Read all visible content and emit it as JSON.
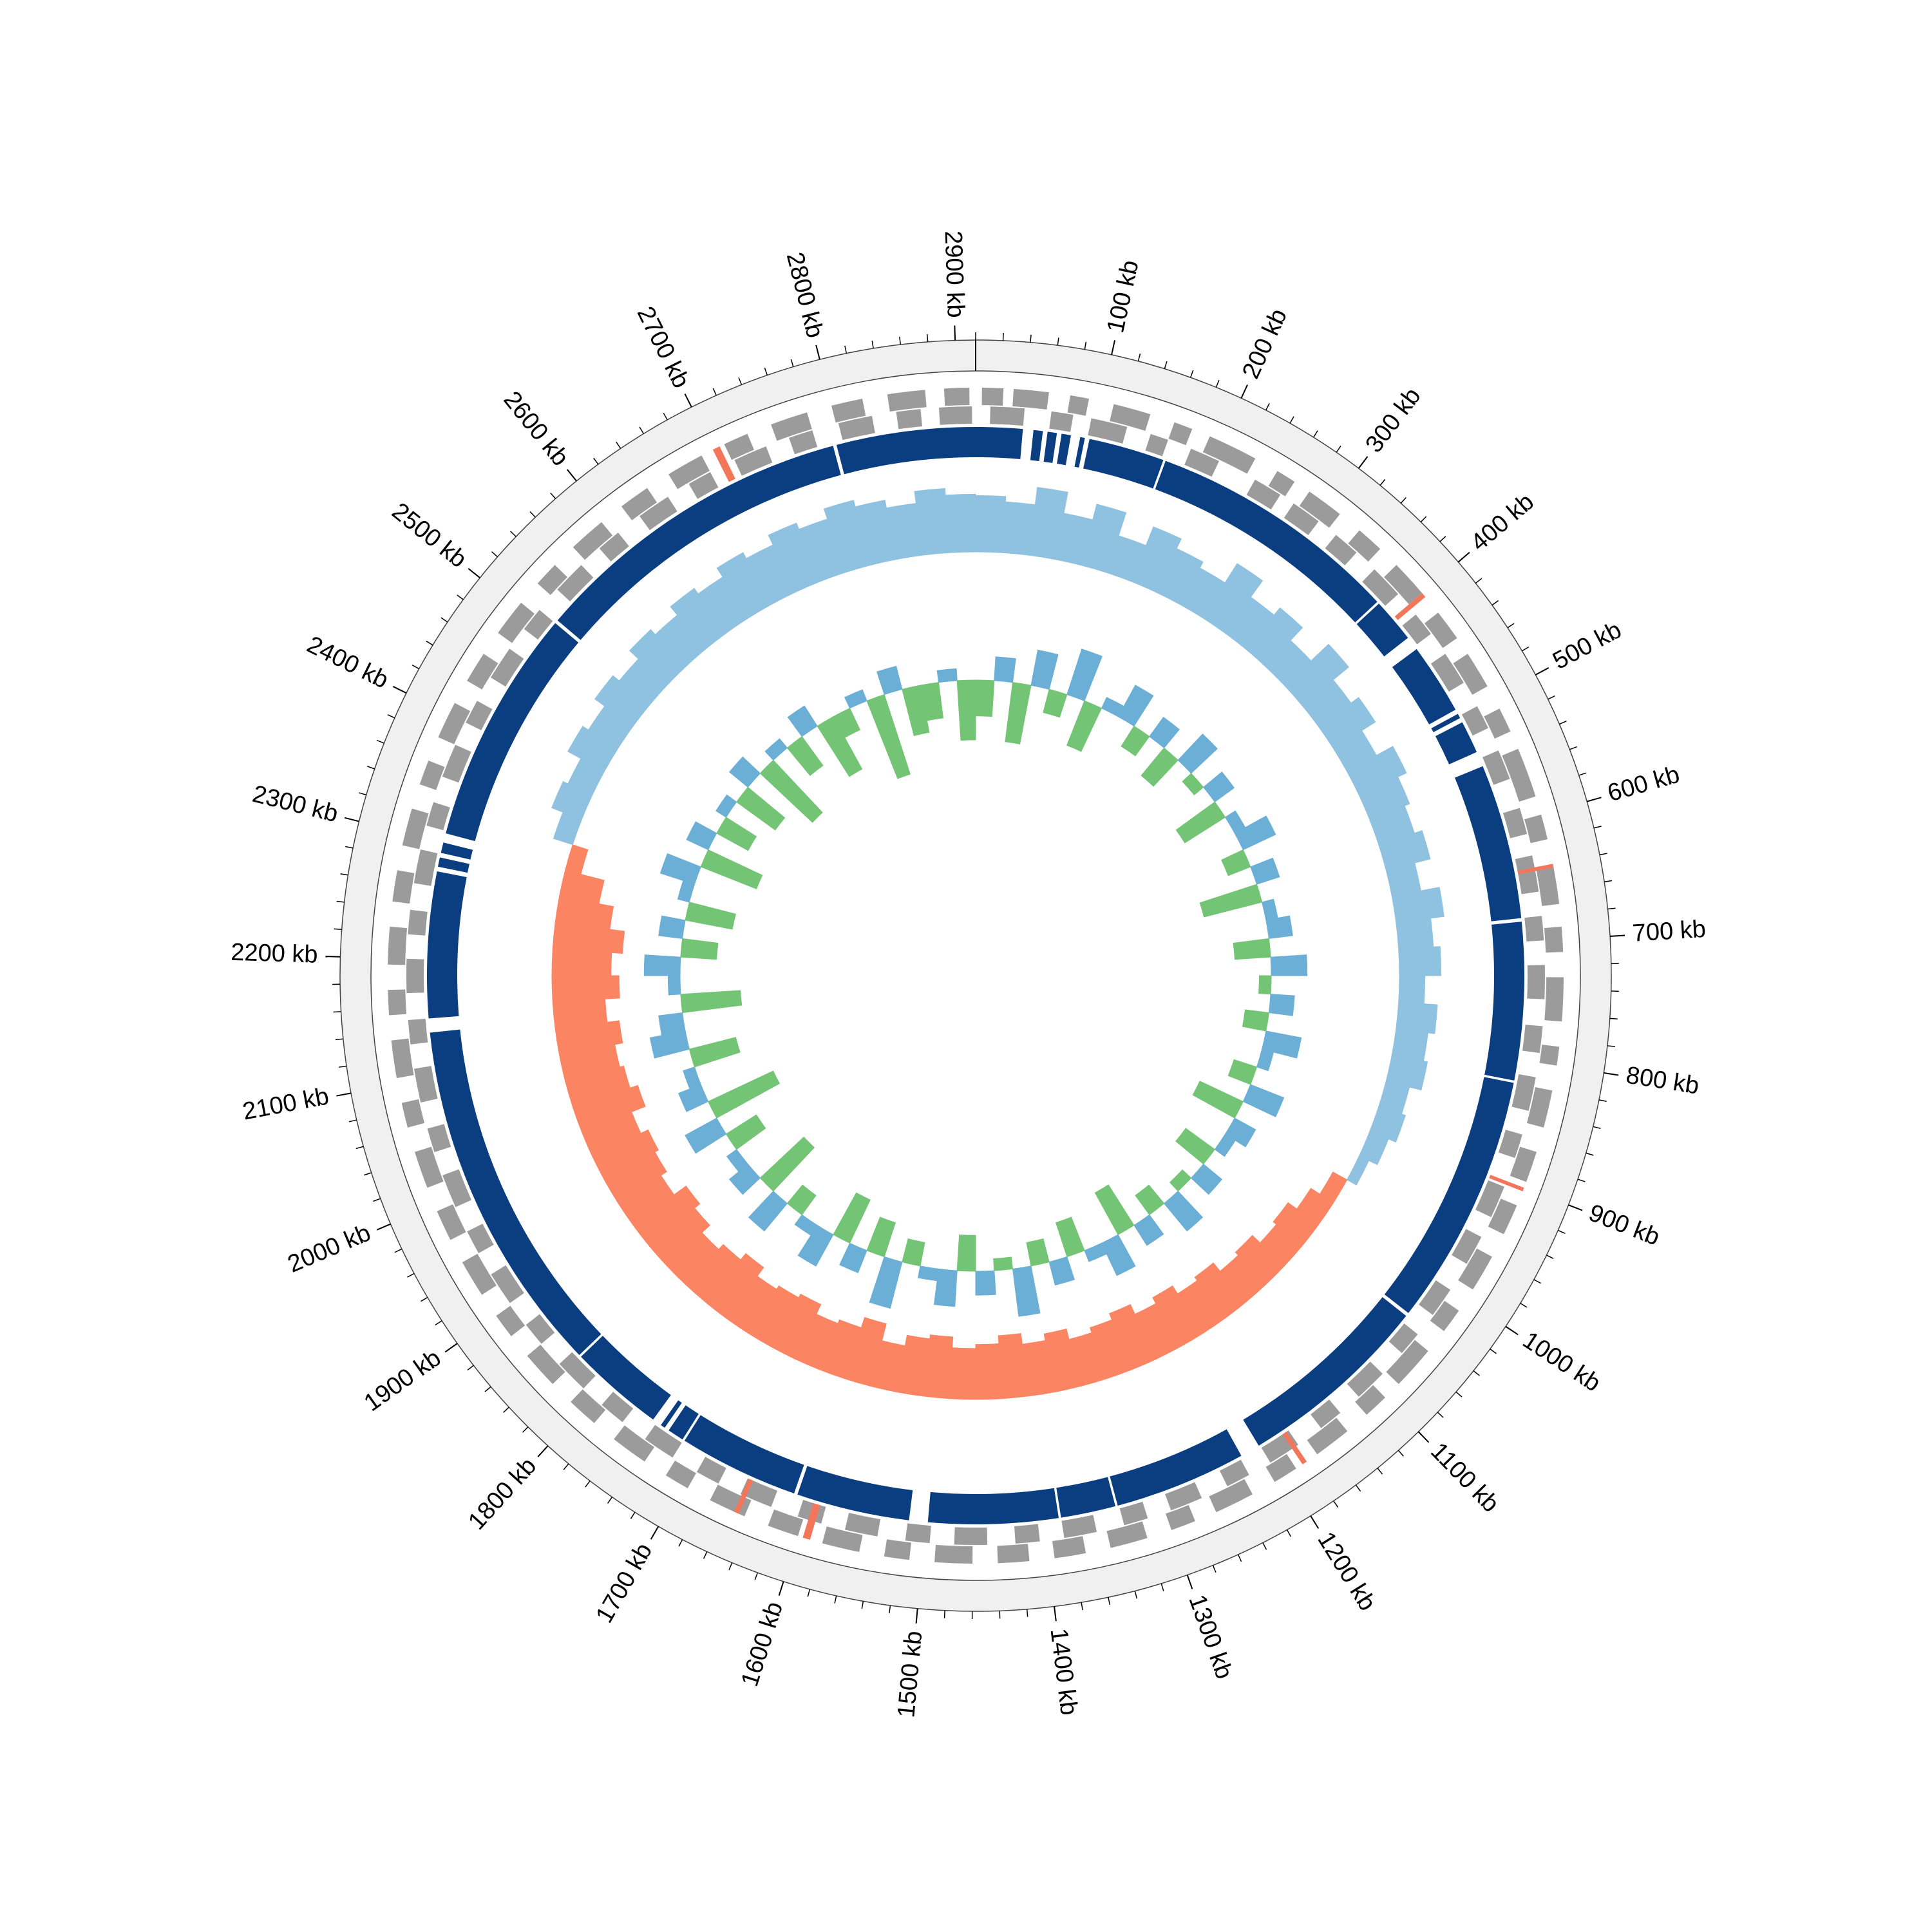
{
  "chart_data": {
    "type": "circular",
    "xlim": [
      0,
      2915
    ],
    "xticks": [
      {
        "value": 100,
        "label": "100 kb"
      },
      {
        "value": 200,
        "label": "200 kb"
      },
      {
        "value": 300,
        "label": "300 kb"
      },
      {
        "value": 400,
        "label": "400 kb"
      },
      {
        "value": 500,
        "label": "500 kb"
      },
      {
        "value": 600,
        "label": "600 kb"
      },
      {
        "value": 700,
        "label": "700 kb"
      },
      {
        "value": 800,
        "label": "800 kb"
      },
      {
        "value": 900,
        "label": "900 kb"
      },
      {
        "value": 1000,
        "label": "1000 kb"
      },
      {
        "value": 1100,
        "label": "1100 kb"
      },
      {
        "value": 1200,
        "label": "1200 kb"
      },
      {
        "value": 1300,
        "label": "1300 kb"
      },
      {
        "value": 1400,
        "label": "1400 kb"
      },
      {
        "value": 1500,
        "label": "1500 kb"
      },
      {
        "value": 1600,
        "label": "1600 kb"
      },
      {
        "value": 1700,
        "label": "1700 kb"
      },
      {
        "value": 1800,
        "label": "1800 kb"
      },
      {
        "value": 1900,
        "label": "1900 kb"
      },
      {
        "value": 2000,
        "label": "2000 kb"
      },
      {
        "value": 2100,
        "label": "2100 kb"
      },
      {
        "value": 2200,
        "label": "2200 kb"
      },
      {
        "value": 2300,
        "label": "2300 kb"
      },
      {
        "value": 2400,
        "label": "2400 kb"
      },
      {
        "value": 2500,
        "label": "2500 kb"
      },
      {
        "value": 2600,
        "label": "2600 kb"
      },
      {
        "value": 2700,
        "label": "2700 kb"
      },
      {
        "value": 2800,
        "label": "2800 kb"
      },
      {
        "value": 2900,
        "label": "2900 kb"
      }
    ],
    "xticks_minor": [
      0,
      20,
      40,
      60,
      80,
      100,
      120,
      140,
      160,
      180,
      200,
      220,
      240,
      260,
      280,
      300,
      320,
      340,
      360,
      380,
      400,
      420,
      440,
      460,
      480,
      500,
      520,
      540,
      560,
      580,
      600,
      620,
      640,
      660,
      680,
      700,
      720,
      740,
      760,
      780,
      800,
      820,
      840,
      860,
      880,
      900,
      920,
      940,
      960,
      980,
      1000,
      1020,
      1040,
      1060,
      1080,
      1100,
      1120,
      1140,
      1160,
      1180,
      1200,
      1220,
      1240,
      1260,
      1280,
      1300,
      1320,
      1340,
      1360,
      1380,
      1400,
      1420,
      1440,
      1460,
      1480,
      1500,
      1520,
      1540,
      1560,
      1580,
      1600,
      1620,
      1640,
      1660,
      1680,
      1700,
      1720,
      1740,
      1760,
      1780,
      1800,
      1820,
      1840,
      1860,
      1880,
      1900,
      1920,
      1940,
      1960,
      1980,
      2000,
      2020,
      2040,
      2060,
      2080,
      2100,
      2120,
      2140,
      2160,
      2180,
      2200,
      2220,
      2240,
      2260,
      2280,
      2300,
      2320,
      2340,
      2360,
      2380,
      2400,
      2420,
      2440,
      2460,
      2480,
      2500,
      2520,
      2540,
      2560,
      2580,
      2600,
      2620,
      2640,
      2660,
      2680,
      2700,
      2720,
      2740,
      2760,
      2780,
      2800,
      2820,
      2840,
      2860,
      2880,
      2900
    ],
    "features": {
      "color": "#9b9b9b",
      "rna_color": "#f4765a",
      "forward": [
        [
          5,
          22
        ],
        [
          30,
          58
        ],
        [
          75,
          90
        ],
        [
          110,
          140
        ],
        [
          160,
          175
        ],
        [
          190,
          230
        ],
        [
          250,
          266
        ],
        [
          280,
          310
        ],
        [
          330,
          352
        ],
        [
          370,
          400
        ],
        [
          420,
          445
        ],
        [
          460,
          490
        ],
        [
          510,
          530
        ],
        [
          545,
          585
        ],
        [
          600,
          620
        ],
        [
          640,
          672
        ],
        [
          690,
          710
        ],
        [
          730,
          765
        ],
        [
          785,
          800
        ],
        [
          820,
          850
        ],
        [
          870,
          895
        ],
        [
          915,
          940
        ],
        [
          960,
          990
        ],
        [
          1010,
          1030
        ],
        [
          1050,
          1085
        ],
        [
          1100,
          1120
        ],
        [
          1140,
          1170
        ],
        [
          1190,
          1210
        ],
        [
          1230,
          1262
        ],
        [
          1280,
          1300
        ],
        [
          1320,
          1350
        ],
        [
          1370,
          1395
        ],
        [
          1415,
          1440
        ],
        [
          1460,
          1490
        ],
        [
          1510,
          1530
        ],
        [
          1550,
          1580
        ],
        [
          1600,
          1625
        ],
        [
          1645,
          1675
        ],
        [
          1695,
          1715
        ],
        [
          1735,
          1765
        ],
        [
          1785,
          1810
        ],
        [
          1830,
          1860
        ],
        [
          1880,
          1900
        ],
        [
          1920,
          1950
        ],
        [
          1970,
          1995
        ],
        [
          2015,
          2045
        ],
        [
          2065,
          2085
        ],
        [
          2105,
          2135
        ],
        [
          2155,
          2175
        ],
        [
          2195,
          2225
        ],
        [
          2245,
          2270
        ],
        [
          2290,
          2320
        ],
        [
          2340,
          2360
        ],
        [
          2380,
          2410
        ],
        [
          2430,
          2455
        ],
        [
          2475,
          2505
        ],
        [
          2525,
          2545
        ],
        [
          2565,
          2595
        ],
        [
          2615,
          2640
        ],
        [
          2660,
          2690
        ],
        [
          2710,
          2730
        ],
        [
          2750,
          2780
        ],
        [
          2800,
          2825
        ],
        [
          2845,
          2875
        ],
        [
          2890,
          2910
        ]
      ],
      "reverse": [
        [
          12,
          40
        ],
        [
          62,
          80
        ],
        [
          95,
          125
        ],
        [
          145,
          160
        ],
        [
          180,
          205
        ],
        [
          238,
          262
        ],
        [
          275,
          300
        ],
        [
          318,
          340
        ],
        [
          360,
          388
        ],
        [
          410,
          430
        ],
        [
          450,
          478
        ],
        [
          500,
          520
        ],
        [
          540,
          565
        ],
        [
          590,
          612
        ],
        [
          630,
          660
        ],
        [
          680,
          700
        ],
        [
          720,
          748
        ],
        [
          770,
          792
        ],
        [
          812,
          840
        ],
        [
          860,
          880
        ],
        [
          905,
          932
        ],
        [
          950,
          975
        ],
        [
          1000,
          1025
        ],
        [
          1045,
          1065
        ],
        [
          1088,
          1115
        ],
        [
          1135,
          1155
        ],
        [
          1178,
          1205
        ],
        [
          1225,
          1245
        ],
        [
          1268,
          1295
        ],
        [
          1315,
          1335
        ],
        [
          1358,
          1385
        ],
        [
          1405,
          1425
        ],
        [
          1448,
          1475
        ],
        [
          1495,
          1515
        ],
        [
          1538,
          1565
        ],
        [
          1585,
          1605
        ],
        [
          1628,
          1655
        ],
        [
          1675,
          1695
        ],
        [
          1718,
          1745
        ],
        [
          1768,
          1790
        ],
        [
          1810,
          1838
        ],
        [
          1860,
          1880
        ],
        [
          1902,
          1930
        ],
        [
          1950,
          1970
        ],
        [
          1992,
          2020
        ],
        [
          2040,
          2060
        ],
        [
          2082,
          2110
        ],
        [
          2130,
          2150
        ],
        [
          2172,
          2200
        ],
        [
          2220,
          2240
        ],
        [
          2262,
          2290
        ],
        [
          2310,
          2330
        ],
        [
          2352,
          2380
        ],
        [
          2400,
          2420
        ],
        [
          2442,
          2470
        ],
        [
          2490,
          2510
        ],
        [
          2532,
          2560
        ],
        [
          2580,
          2600
        ],
        [
          2622,
          2650
        ],
        [
          2670,
          2690
        ],
        [
          2712,
          2740
        ],
        [
          2760,
          2780
        ],
        [
          2802,
          2830
        ],
        [
          2850,
          2870
        ],
        [
          2885,
          2912
        ]
      ],
      "rna": [
        [
          2700,
          2706
        ],
        [
          400,
          404
        ],
        [
          1590,
          1596
        ],
        [
          1650,
          1654
        ],
        [
          1180,
          1184
        ],
        [
          900,
          903
        ],
        [
          640,
          643
        ]
      ]
    },
    "contigs": {
      "color": "#0b3e80",
      "intervals": [
        [
          0,
          40
        ],
        [
          49,
          57
        ],
        [
          61,
          69
        ],
        [
          73,
          81
        ],
        [
          89,
          93
        ],
        [
          97,
          162
        ],
        [
          164,
          381
        ],
        [
          383,
          421
        ],
        [
          433,
          494
        ],
        [
          498,
          502
        ],
        [
          506,
          534
        ],
        [
          547,
          680
        ],
        [
          683,
          818
        ],
        [
          820,
          1036
        ],
        [
          1039,
          1206
        ],
        [
          1223,
          1336
        ],
        [
          1338,
          1385
        ],
        [
          1387,
          1498
        ],
        [
          1514,
          1611
        ],
        [
          1614,
          1717
        ],
        [
          1719,
          1733
        ],
        [
          1737,
          1741
        ],
        [
          1749,
          1830
        ],
        [
          1832,
          2138
        ],
        [
          2150,
          2275
        ],
        [
          2279,
          2287
        ],
        [
          2291,
          2300
        ],
        [
          2308,
          2510
        ],
        [
          2513,
          2793
        ],
        [
          2796,
          2915
        ]
      ]
    },
    "gc_skew": {
      "ylim": [
        -0.06,
        0.06
      ],
      "positive_color": "#8fc1e0",
      "negative_color": "#fb8463",
      "values": [
        0.042,
        0.038,
        0.051,
        0.035,
        0.047,
        0.029,
        0.044,
        0.036,
        0.031,
        0.048,
        0.033,
        0.04,
        0.027,
        0.045,
        0.03,
        0.037,
        0.025,
        0.039,
        0.032,
        0.028,
        0.034,
        0.022,
        0.036,
        0.026,
        0.031,
        0.019,
        0.029,
        0.024,
        0.027,
        0.018,
        0.021,
        0.015,
        0.008,
        -0.012,
        -0.02,
        -0.028,
        -0.025,
        -0.033,
        -0.03,
        -0.038,
        -0.035,
        -0.042,
        -0.037,
        -0.045,
        -0.04,
        -0.036,
        -0.044,
        -0.039,
        -0.047,
        -0.041,
        -0.038,
        -0.046,
        -0.043,
        -0.035,
        -0.048,
        -0.04,
        -0.037,
        -0.045,
        -0.042,
        -0.039,
        -0.047,
        -0.041,
        -0.036,
        -0.044,
        -0.049,
        -0.038,
        -0.043,
        -0.046,
        -0.04,
        -0.051,
        -0.045,
        -0.042,
        -0.048,
        -0.039,
        -0.05,
        -0.044,
        -0.052,
        -0.041,
        -0.03,
        -0.012,
        0.015,
        0.024,
        0.02,
        0.031,
        0.026,
        0.035,
        0.029,
        0.038,
        0.033,
        0.041,
        0.036,
        0.044,
        0.039,
        0.047,
        0.042,
        0.05,
        0.045,
        0.039,
        0.048,
        0.043
      ]
    },
    "gc_content": {
      "ylim": [
        -0.07,
        0.07
      ],
      "positive_color": "#6baed6",
      "negative_color": "#74c476",
      "values": [
        -0.03,
        0.02,
        -0.05,
        0.03,
        -0.02,
        0.04,
        -0.04,
        0.01,
        0.03,
        -0.02,
        0.02,
        -0.03,
        0.03,
        -0.01,
        0.02,
        -0.04,
        0.01,
        0.03,
        -0.02,
        0.02,
        -0.05,
        0.01,
        0.02,
        -0.03,
        0.03,
        -0.01,
        0.02,
        -0.02,
        0.03,
        0.01,
        -0.02,
        0.03,
        -0.04,
        0.02,
        0.01,
        -0.03,
        0.02,
        -0.01,
        0.03,
        -0.02,
        0.02,
        -0.04,
        0.03,
        0.01,
        -0.03,
        0.02,
        -0.02,
        0.04,
        -0.01,
        0.02,
        -0.03,
        0.03,
        0.01,
        -0.02,
        0.04,
        -0.03,
        0.02,
        -0.04,
        0.03,
        0.01,
        -0.02,
        0.03,
        -0.05,
        0.02,
        0.01,
        -0.03,
        0.03,
        -0.06,
        0.02,
        0.01,
        -0.04,
        0.03,
        0.02,
        -0.05,
        0.01,
        0.03,
        -0.03,
        0.02,
        -0.04,
        0.01,
        0.03,
        -0.05,
        0.02,
        -0.03,
        0.01,
        -0.04,
        0.02,
        -0.06,
        0.01,
        -0.03,
        0.02,
        -0.05,
        -0.02,
        0.01,
        -0.07,
        0.02,
        -0.04,
        -0.03,
        0.01,
        -0.05
      ]
    }
  }
}
